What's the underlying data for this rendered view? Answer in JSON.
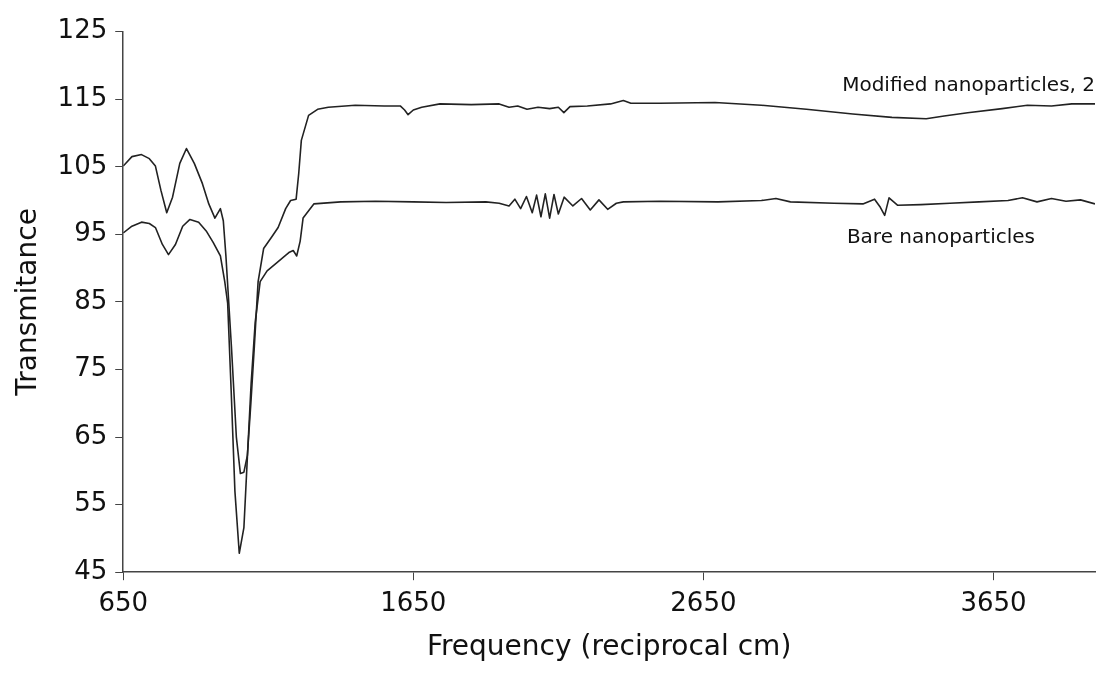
{
  "chart_data": {
    "type": "line",
    "xlabel": "Frequency (reciprocal cm)",
    "ylabel": "Transmitance",
    "xlim": [
      650,
      4000
    ],
    "ylim": [
      45,
      125
    ],
    "xticks": [
      650,
      1650,
      2650,
      3650
    ],
    "yticks": [
      45,
      55,
      65,
      75,
      85,
      95,
      105,
      115,
      125
    ],
    "grid": false,
    "legend": false,
    "marker": "none",
    "line_style": "solid",
    "series": [
      {
        "name": "Modified nanoparticles, 2",
        "color": "#222222",
        "x": [
          650,
          680,
          713,
          740,
          761,
          780,
          800,
          820,
          845,
          868,
          895,
          923,
          945,
          966,
          985,
          995,
          1004,
          1023,
          1040,
          1054,
          1066,
          1078,
          1090,
          1102,
          1115,
          1134,
          1160,
          1184,
          1210,
          1227,
          1246,
          1255,
          1264,
          1289,
          1320,
          1357,
          1450,
          1550,
          1605,
          1620,
          1632,
          1650,
          1679,
          1742,
          1850,
          1946,
          1980,
          2010,
          2042,
          2080,
          2120,
          2150,
          2169,
          2190,
          2250,
          2330,
          2374,
          2400,
          2500,
          2690,
          2850,
          3005,
          3165,
          3300,
          3418,
          3480,
          3561,
          3680,
          3767,
          3850,
          3920,
          4000
        ],
        "values": [
          105.1,
          106.5,
          106.8,
          106.2,
          105.1,
          101.5,
          98.2,
          100.5,
          105.5,
          107.7,
          105.5,
          102.5,
          99.5,
          97.4,
          98.8,
          97,
          91.8,
          78.4,
          65,
          59.6,
          59.8,
          62.3,
          70,
          78.4,
          88,
          92.9,
          94.5,
          96,
          98.8,
          100,
          100.2,
          104,
          108.9,
          112.6,
          113.5,
          113.8,
          114.1,
          114,
          114,
          113.4,
          112.7,
          113.4,
          113.8,
          114.3,
          114.2,
          114.3,
          113.8,
          114,
          113.5,
          113.8,
          113.6,
          113.8,
          113,
          113.9,
          114,
          114.3,
          114.8,
          114.4,
          114.4,
          114.5,
          114.1,
          113.5,
          112.8,
          112.3,
          112.1,
          112.5,
          113,
          113.6,
          114.1,
          114,
          114.3,
          114.3
        ]
      },
      {
        "name": "Bare nanoparticles",
        "color": "#222222",
        "x": [
          650,
          680,
          713,
          740,
          761,
          785,
          806,
          830,
          855,
          880,
          910,
          936,
          960,
          985,
          1000,
          1010,
          1022,
          1035,
          1050,
          1066,
          1078,
          1091,
          1105,
          1122,
          1146,
          1180,
          1221,
          1236,
          1248,
          1260,
          1270,
          1307,
          1400,
          1520,
          1650,
          1763,
          1900,
          1946,
          1980,
          2000,
          2020,
          2040,
          2060,
          2075,
          2090,
          2105,
          2120,
          2135,
          2150,
          2170,
          2200,
          2230,
          2260,
          2290,
          2320,
          2350,
          2374,
          2500,
          2700,
          2850,
          2900,
          2950,
          3100,
          3200,
          3240,
          3260,
          3275,
          3290,
          3320,
          3400,
          3500,
          3600,
          3700,
          3750,
          3800,
          3850,
          3900,
          3950,
          4000
        ],
        "values": [
          95.2,
          96.2,
          96.8,
          96.6,
          96,
          93.5,
          92,
          93.5,
          96.2,
          97.2,
          96.8,
          95.5,
          93.8,
          91.8,
          88,
          84.8,
          72,
          57,
          47.8,
          51.6,
          62,
          73,
          82,
          88,
          89.6,
          90.8,
          92.3,
          92.6,
          91.8,
          94,
          97.4,
          99.5,
          99.8,
          99.9,
          99.8,
          99.7,
          99.8,
          99.6,
          99.2,
          100.2,
          98.8,
          100.6,
          98.2,
          100.8,
          97.6,
          101,
          97.4,
          100.9,
          98,
          100.5,
          99.2,
          100.3,
          98.6,
          100.1,
          98.7,
          99.6,
          99.8,
          99.9,
          99.8,
          100,
          100.3,
          99.8,
          99.6,
          99.5,
          100.2,
          99,
          97.8,
          100.4,
          99.3,
          99.4,
          99.6,
          99.8,
          100,
          100.4,
          99.8,
          100.3,
          99.9,
          100.1,
          99.5
        ]
      }
    ]
  }
}
